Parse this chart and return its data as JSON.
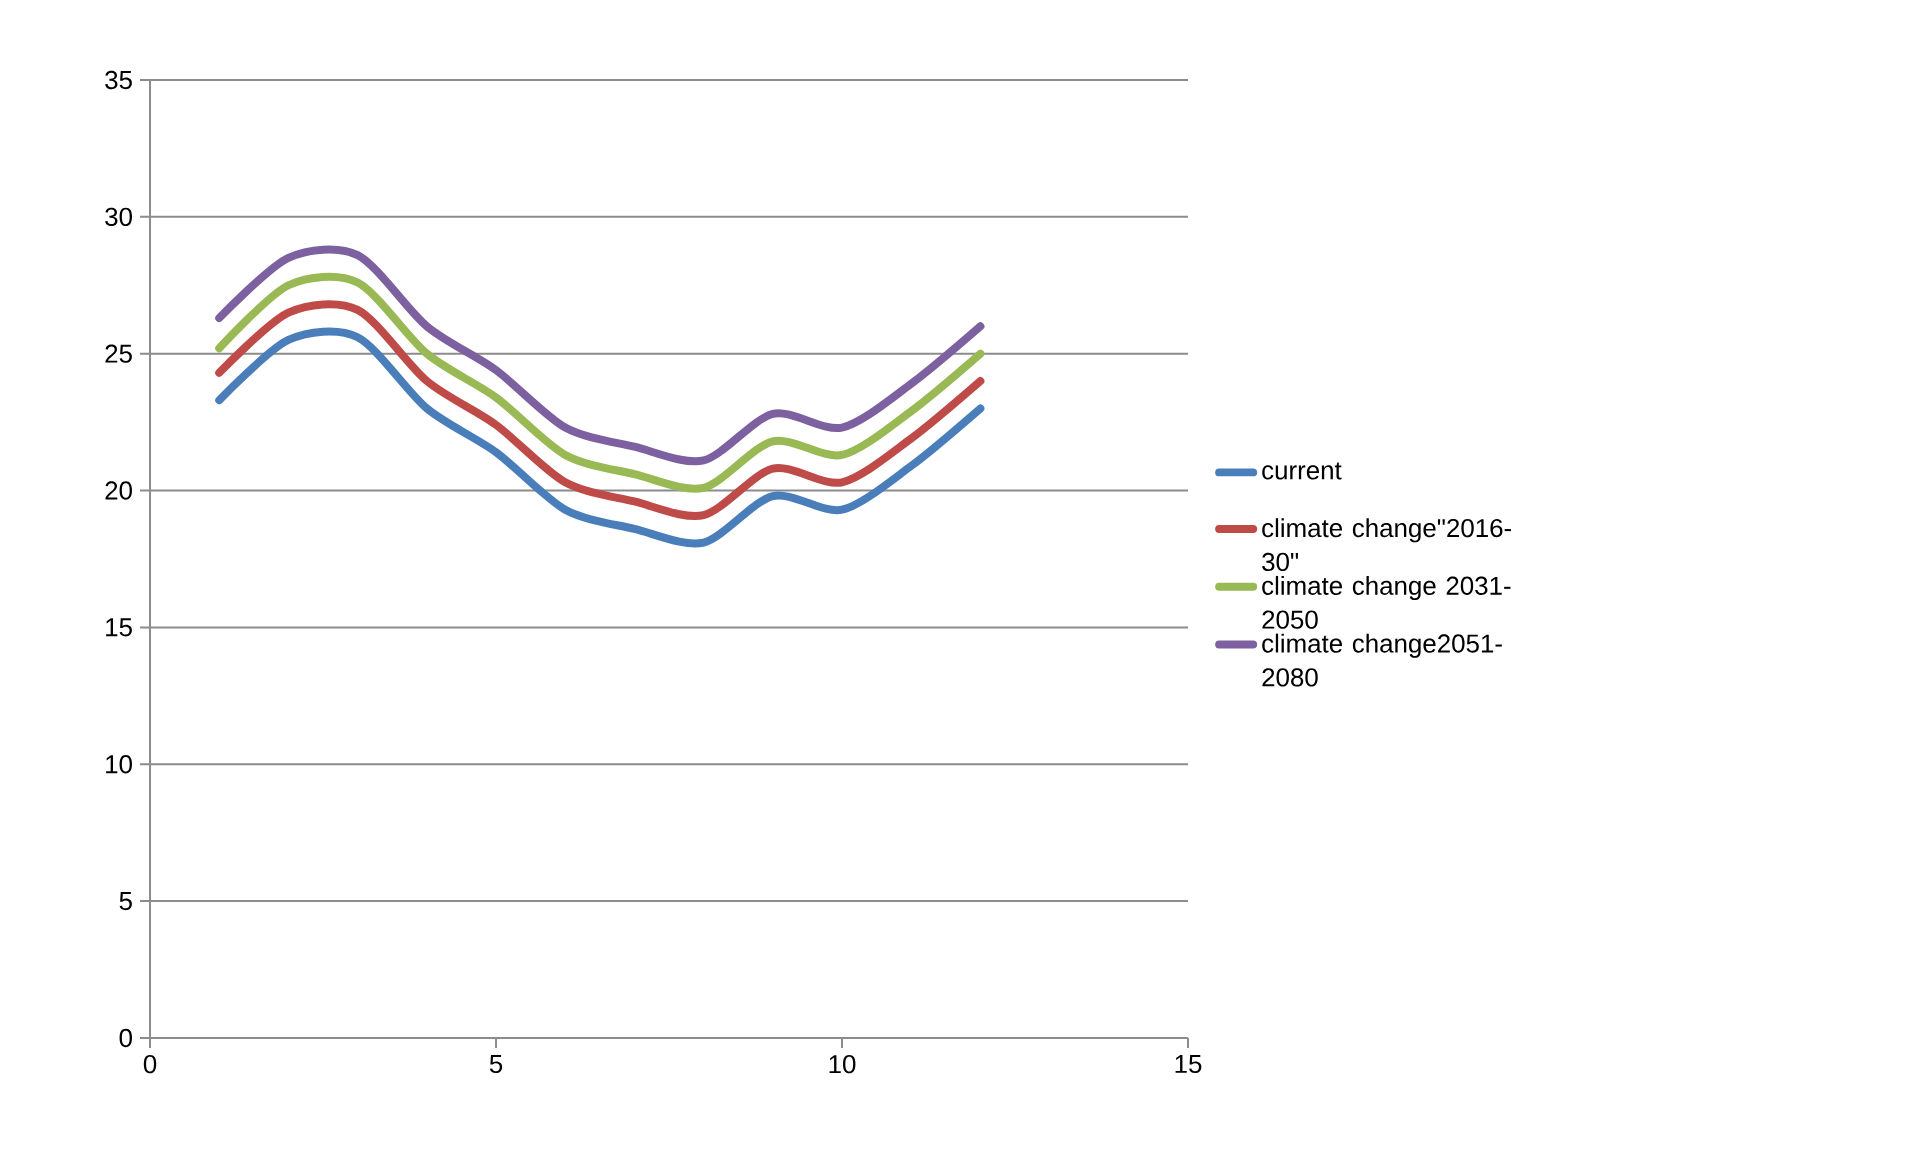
{
  "chart_data": {
    "type": "line",
    "x": [
      1,
      2,
      3,
      4,
      5,
      6,
      7,
      8,
      9,
      10,
      11,
      12
    ],
    "series": [
      {
        "name": "current",
        "color": "#4a7ebb",
        "values": [
          23.3,
          25.5,
          25.6,
          23.0,
          21.4,
          19.3,
          18.6,
          18.1,
          19.8,
          19.3,
          20.9,
          23.0
        ]
      },
      {
        "name": "climate change\"2016-30\"",
        "color": "#be4b48",
        "values": [
          24.3,
          26.5,
          26.6,
          24.0,
          22.4,
          20.3,
          19.6,
          19.1,
          20.8,
          20.3,
          21.9,
          24.0
        ]
      },
      {
        "name": "climate change 2031-2050",
        "color": "#98b954",
        "values": [
          25.2,
          27.5,
          27.6,
          25.0,
          23.4,
          21.3,
          20.6,
          20.1,
          21.8,
          21.3,
          22.9,
          25.0
        ]
      },
      {
        "name": "climate change2051-2080",
        "color": "#7d60a0",
        "values": [
          26.3,
          28.5,
          28.6,
          26.0,
          24.4,
          22.3,
          21.6,
          21.1,
          22.8,
          22.3,
          23.9,
          26.0
        ]
      }
    ],
    "xlim": [
      0,
      15
    ],
    "xticks": [
      0,
      5,
      10,
      15
    ],
    "ylim": [
      0,
      35
    ],
    "yticks": [
      0,
      5,
      10,
      15,
      20,
      25,
      30,
      35
    ],
    "grid": "y",
    "legend": "right",
    "marker": "none",
    "line_style": "solid"
  }
}
